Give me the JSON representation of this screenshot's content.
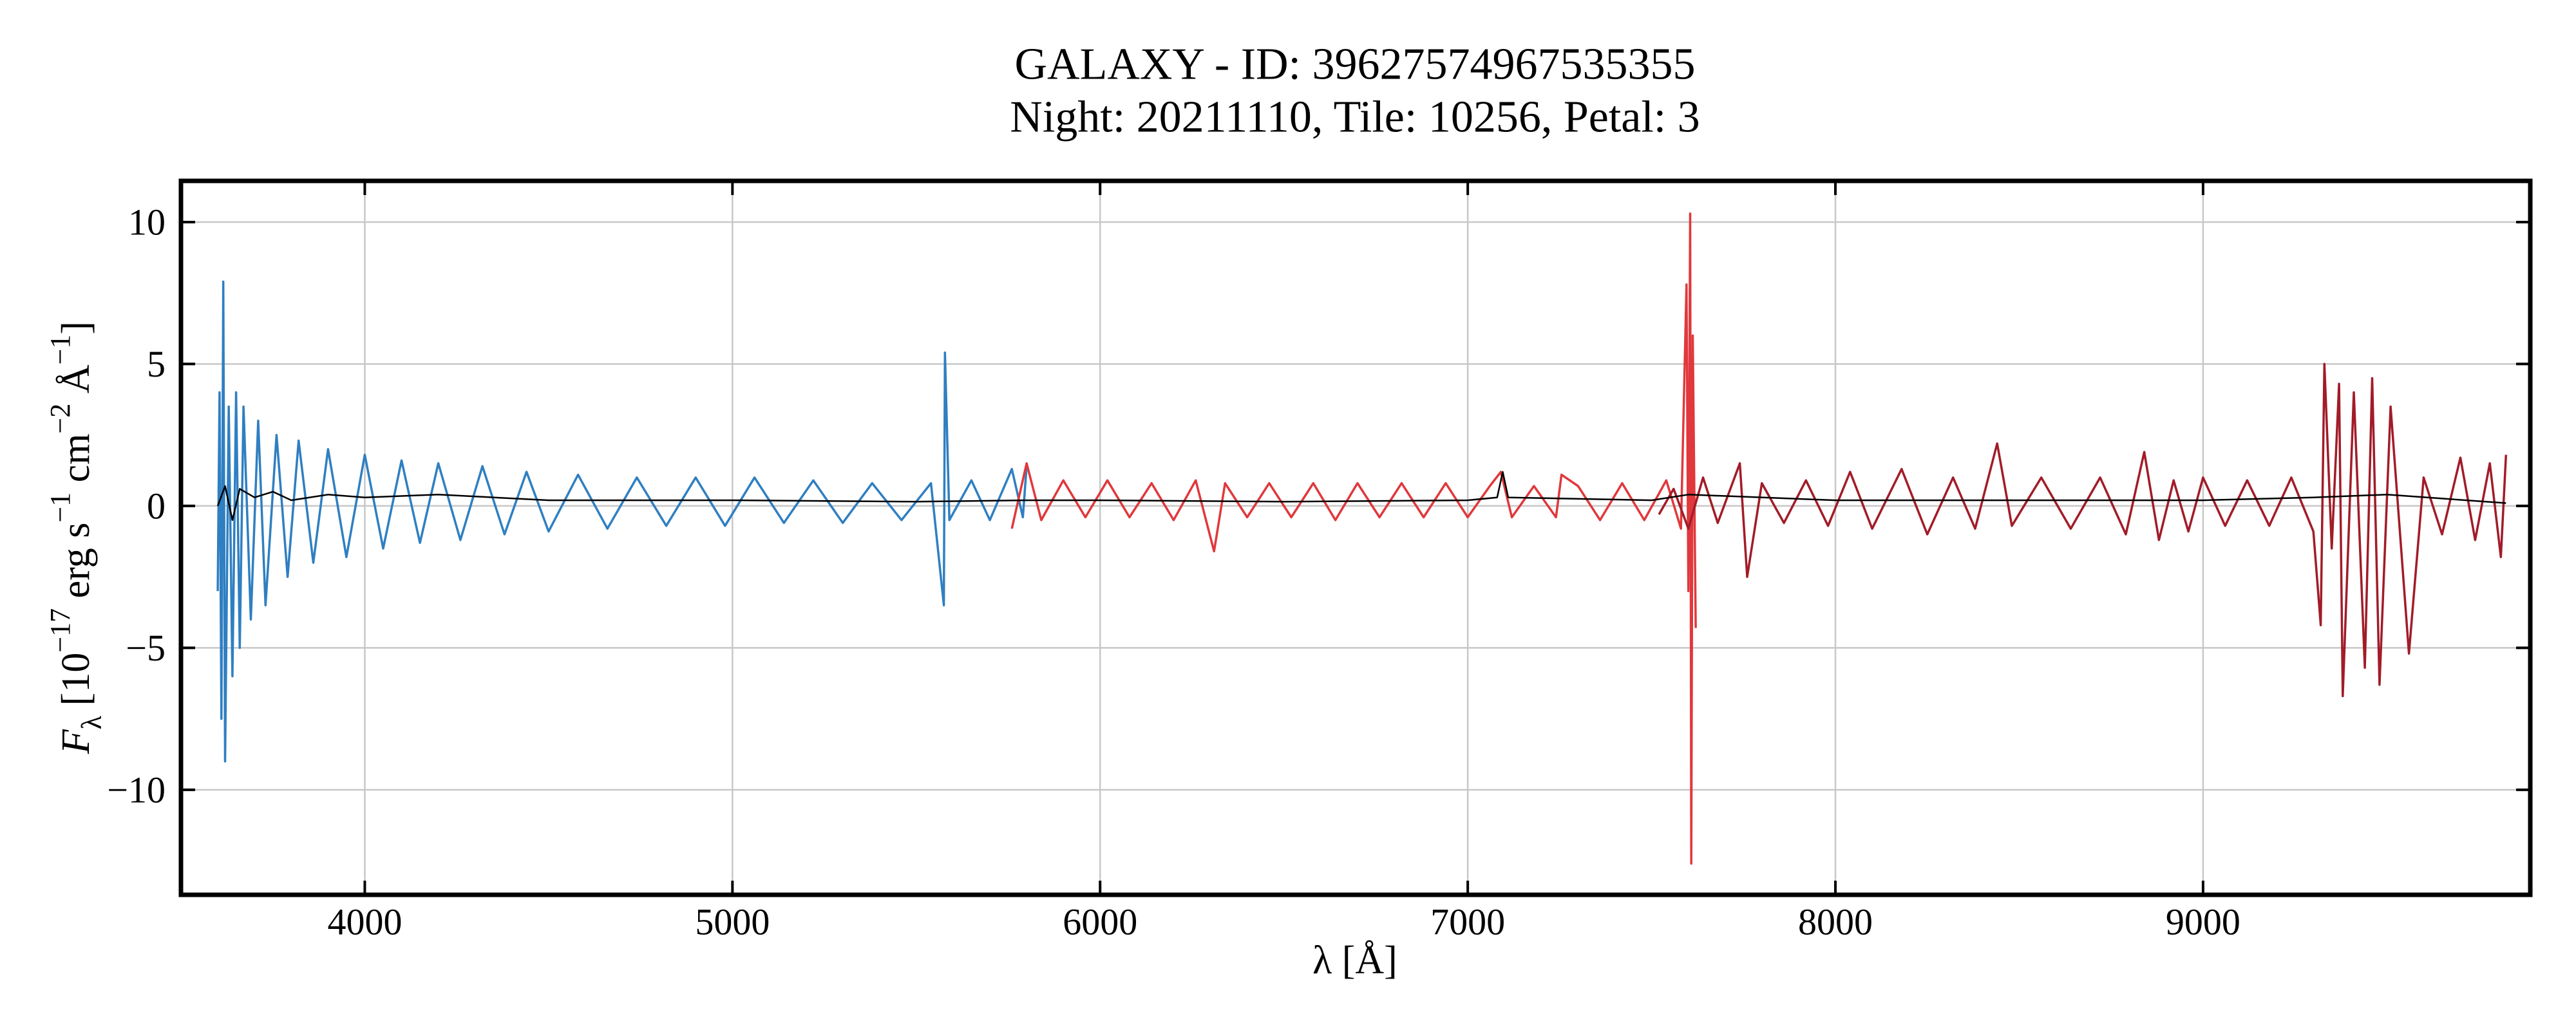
{
  "chart_data": {
    "type": "line",
    "title": "GALAXY - ID: 39627574967535355",
    "subtitle": "Night: 20211110, Tile: 10256, Petal: 3",
    "xlabel": "λ [Å]",
    "ylabel": [
      {
        "text": "F"
      },
      {
        "text": "λ",
        "script": "sub"
      },
      {
        "text": " [10"
      },
      {
        "text": "−17",
        "script": "super"
      },
      {
        "text": " erg s"
      },
      {
        "text": "−1",
        "script": "super"
      },
      {
        "text": " cm"
      },
      {
        "text": "−2",
        "script": "super"
      },
      {
        "text": " Å"
      },
      {
        "text": "−1",
        "script": "super"
      },
      {
        "text": "]"
      }
    ],
    "xlim": [
      3500,
      9890
    ],
    "ylim": [
      -13.7,
      11.45
    ],
    "xticks": [
      4000,
      5000,
      6000,
      7000,
      8000,
      9000
    ],
    "yticks": [
      {
        "value": 10,
        "label": "10"
      },
      {
        "value": 5,
        "label": "5"
      },
      {
        "value": 0,
        "label": "0"
      },
      {
        "value": -5,
        "label": "−5"
      },
      {
        "value": -10,
        "label": "−10"
      }
    ],
    "grid": true,
    "series": [
      {
        "color": "#2f7fc1",
        "width": 3.5,
        "x": [
          3600,
          3605,
          3610,
          3615,
          3620,
          3630,
          3640,
          3650,
          3660,
          3670,
          3690,
          3710,
          3730,
          3760,
          3790,
          3820,
          3860,
          3900,
          3950,
          4000,
          4050,
          4100,
          4150,
          4200,
          4260,
          4320,
          4380,
          4440,
          4500,
          4580,
          4660,
          4740,
          4820,
          4900,
          4980,
          5060,
          5140,
          5220,
          5300,
          5380,
          5460,
          5540,
          5575,
          5578,
          5590,
          5650,
          5700,
          5760,
          5790,
          5800
        ],
        "values": [
          -3,
          4,
          -7.5,
          7.9,
          -9,
          3.5,
          -6,
          4,
          -5,
          3.5,
          -4,
          3,
          -3.5,
          2.5,
          -2.5,
          2.3,
          -2,
          2,
          -1.8,
          1.8,
          -1.5,
          1.6,
          -1.3,
          1.5,
          -1.2,
          1.4,
          -1,
          1.2,
          -0.9,
          1.1,
          -0.8,
          1,
          -0.7,
          1,
          -0.7,
          1,
          -0.6,
          0.9,
          -0.6,
          0.8,
          -0.5,
          0.8,
          -3.5,
          5.4,
          -0.5,
          0.9,
          -0.5,
          1.3,
          -0.4,
          1.4
        ]
      },
      {
        "color": "#e0383c",
        "width": 3.5,
        "x": [
          5760,
          5800,
          5840,
          5900,
          5960,
          6020,
          6080,
          6140,
          6200,
          6260,
          6310,
          6340,
          6400,
          6460,
          6520,
          6580,
          6640,
          6700,
          6760,
          6820,
          6880,
          6940,
          7000,
          7060,
          7090,
          7120,
          7180,
          7240,
          7255,
          7300,
          7360,
          7420,
          7480,
          7540,
          7580,
          7595,
          7600,
          7605,
          7608,
          7612,
          7620
        ],
        "values": [
          -0.8,
          1.5,
          -0.5,
          0.9,
          -0.4,
          0.9,
          -0.4,
          0.8,
          -0.5,
          0.9,
          -1.6,
          0.8,
          -0.4,
          0.8,
          -0.4,
          0.8,
          -0.5,
          0.8,
          -0.4,
          0.8,
          -0.4,
          0.8,
          -0.4,
          0.7,
          1.2,
          -0.4,
          0.7,
          -0.4,
          1.1,
          0.7,
          -0.5,
          0.8,
          -0.5,
          0.9,
          -0.8,
          7.8,
          -3,
          10.3,
          -12.6,
          6,
          -4.3
        ]
      },
      {
        "color": "#a11c28",
        "width": 3.5,
        "x": [
          7520,
          7560,
          7600,
          7640,
          7680,
          7740,
          7760,
          7800,
          7860,
          7920,
          7980,
          8040,
          8100,
          8180,
          8250,
          8320,
          8380,
          8440,
          8480,
          8560,
          8640,
          8720,
          8790,
          8840,
          8880,
          8920,
          8960,
          9000,
          9060,
          9120,
          9180,
          9240,
          9300,
          9320,
          9330,
          9350,
          9370,
          9380,
          9410,
          9440,
          9460,
          9480,
          9510,
          9560,
          9600,
          9650,
          9700,
          9740,
          9780,
          9810,
          9824
        ],
        "values": [
          -0.3,
          0.6,
          -0.8,
          1,
          -0.6,
          1.5,
          -2.5,
          0.8,
          -0.6,
          0.9,
          -0.7,
          1.2,
          -0.8,
          1.3,
          -1,
          1,
          -0.8,
          2.2,
          -0.7,
          1,
          -0.8,
          1,
          -1,
          1.9,
          -1.2,
          0.9,
          -0.9,
          1,
          -0.7,
          0.9,
          -0.7,
          1,
          -0.9,
          -4.2,
          5,
          -1.5,
          4.3,
          -6.7,
          4,
          -5.7,
          4.5,
          -6.3,
          3.5,
          -5.2,
          1,
          -1,
          1.7,
          -1.2,
          1.5,
          -1.8,
          1.8
        ]
      },
      {
        "color": "#000000",
        "width": 2.5,
        "x": [
          3600,
          3620,
          3640,
          3660,
          3700,
          3750,
          3800,
          3900,
          4000,
          4200,
          4500,
          5000,
          5500,
          5800,
          6000,
          6500,
          7000,
          7080,
          7095,
          7110,
          7500,
          7600,
          8000,
          9000,
          9300,
          9500,
          9824
        ],
        "values": [
          0,
          0.7,
          -0.5,
          0.6,
          0.3,
          0.5,
          0.2,
          0.4,
          0.3,
          0.4,
          0.2,
          0.2,
          0.15,
          0.2,
          0.2,
          0.15,
          0.2,
          0.3,
          1.2,
          0.3,
          0.2,
          0.4,
          0.2,
          0.2,
          0.3,
          0.4,
          0.1
        ]
      }
    ]
  }
}
